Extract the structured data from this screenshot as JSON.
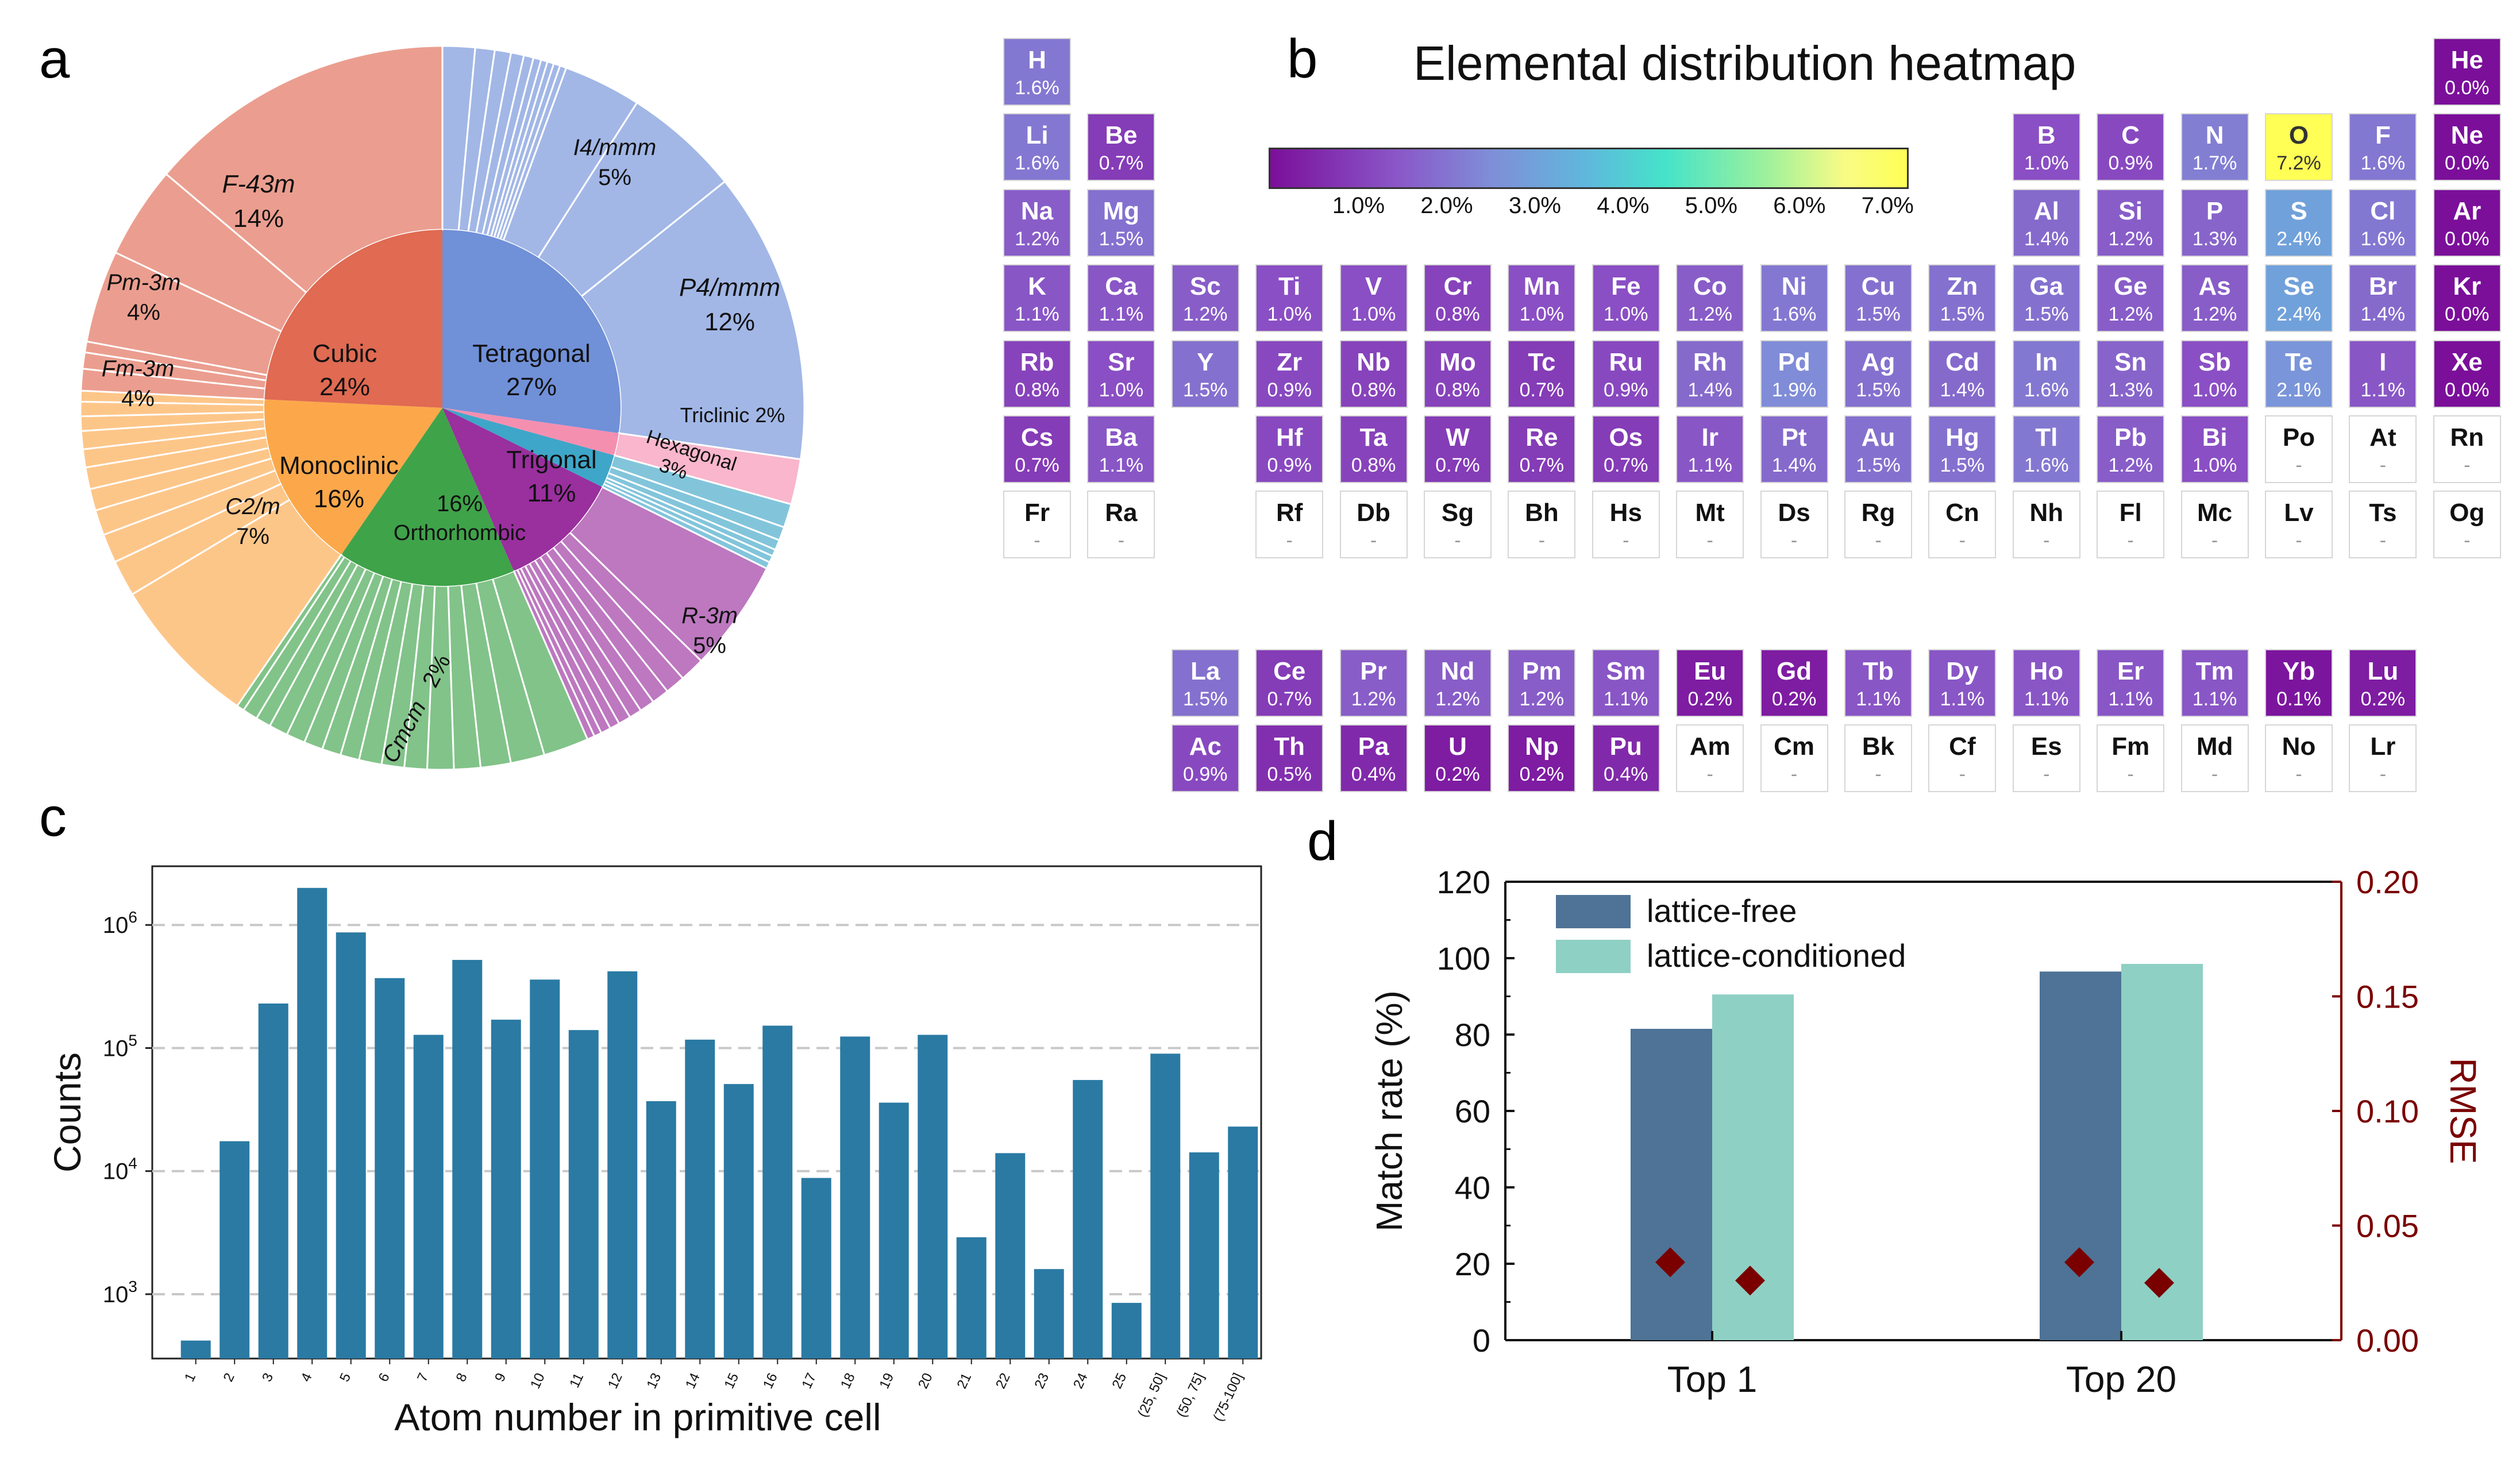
{
  "panel_labels": {
    "a": "a",
    "b": "b",
    "c": "c",
    "d": "d"
  },
  "chart_data": [
    {
      "type": "pie",
      "panel": "a",
      "title": "",
      "inner": [
        {
          "name": "Tetragonal",
          "value": 27,
          "label": "27%",
          "color": "#7090d8"
        },
        {
          "name": "Triclinic",
          "value": 2,
          "color": "#f58fb0"
        },
        {
          "name": "Hexagonal",
          "value": 3,
          "color": "#3ea6c8"
        },
        {
          "name": "Trigonal",
          "value": 11,
          "label": "11%",
          "color": "#9a2f9e"
        },
        {
          "name": "Orthorhombic",
          "value": 16,
          "label": "16%",
          "color": "#3fa34a"
        },
        {
          "name": "Monoclinic",
          "value": 16,
          "label": "16%",
          "color": "#fca84a"
        },
        {
          "name": "Cubic",
          "value": 24,
          "label": "24%",
          "color": "#e06a52"
        }
      ],
      "outer_labels": [
        {
          "group": "Tetragonal",
          "name": "I4/mmm",
          "value": "5%"
        },
        {
          "group": "Tetragonal",
          "name": "P4/mmm",
          "value": "12%"
        },
        {
          "group": "Triclinic",
          "name": "Triclinic 2%"
        },
        {
          "group": "Hexagonal",
          "name": "Hexagonal",
          "value": "3%"
        },
        {
          "group": "Trigonal",
          "name": "R-3m",
          "value": "5%"
        },
        {
          "group": "Orthorhombic",
          "name": "Cmcm",
          "value": "2%"
        },
        {
          "group": "Monoclinic",
          "name": "C2/m",
          "value": "7%"
        },
        {
          "group": "Cubic",
          "name": "Fm-3m",
          "value": "4%"
        },
        {
          "group": "Cubic",
          "name": "Pm-3m",
          "value": "4%"
        },
        {
          "group": "Cubic",
          "name": "F-43m",
          "value": "14%"
        }
      ]
    },
    {
      "type": "heatmap",
      "panel": "b",
      "title": "Elemental distribution heatmap",
      "colorbar_ticks": [
        "1.0%",
        "2.0%",
        "3.0%",
        "4.0%",
        "5.0%",
        "6.0%",
        "7.0%"
      ],
      "colorbar_range": [
        0,
        7.2
      ],
      "elements": [
        {
          "s": "H",
          "v": "1.6%",
          "r": 1,
          "c": 1
        },
        {
          "s": "He",
          "v": "0.0%",
          "r": 1,
          "c": 18
        },
        {
          "s": "Li",
          "v": "1.6%",
          "r": 2,
          "c": 1
        },
        {
          "s": "Be",
          "v": "0.7%",
          "r": 2,
          "c": 2
        },
        {
          "s": "B",
          "v": "1.0%",
          "r": 2,
          "c": 13
        },
        {
          "s": "C",
          "v": "0.9%",
          "r": 2,
          "c": 14
        },
        {
          "s": "N",
          "v": "1.7%",
          "r": 2,
          "c": 15
        },
        {
          "s": "O",
          "v": "7.2%",
          "r": 2,
          "c": 16
        },
        {
          "s": "F",
          "v": "1.6%",
          "r": 2,
          "c": 17
        },
        {
          "s": "Ne",
          "v": "0.0%",
          "r": 2,
          "c": 18
        },
        {
          "s": "Na",
          "v": "1.2%",
          "r": 3,
          "c": 1
        },
        {
          "s": "Mg",
          "v": "1.5%",
          "r": 3,
          "c": 2
        },
        {
          "s": "Al",
          "v": "1.4%",
          "r": 3,
          "c": 13
        },
        {
          "s": "Si",
          "v": "1.2%",
          "r": 3,
          "c": 14
        },
        {
          "s": "P",
          "v": "1.3%",
          "r": 3,
          "c": 15
        },
        {
          "s": "S",
          "v": "2.4%",
          "r": 3,
          "c": 16
        },
        {
          "s": "Cl",
          "v": "1.6%",
          "r": 3,
          "c": 17
        },
        {
          "s": "Ar",
          "v": "0.0%",
          "r": 3,
          "c": 18
        },
        {
          "s": "K",
          "v": "1.1%",
          "r": 4,
          "c": 1
        },
        {
          "s": "Ca",
          "v": "1.1%",
          "r": 4,
          "c": 2
        },
        {
          "s": "Sc",
          "v": "1.2%",
          "r": 4,
          "c": 3
        },
        {
          "s": "Ti",
          "v": "1.0%",
          "r": 4,
          "c": 4
        },
        {
          "s": "V",
          "v": "1.0%",
          "r": 4,
          "c": 5
        },
        {
          "s": "Cr",
          "v": "0.8%",
          "r": 4,
          "c": 6
        },
        {
          "s": "Mn",
          "v": "1.0%",
          "r": 4,
          "c": 7
        },
        {
          "s": "Fe",
          "v": "1.0%",
          "r": 4,
          "c": 8
        },
        {
          "s": "Co",
          "v": "1.2%",
          "r": 4,
          "c": 9
        },
        {
          "s": "Ni",
          "v": "1.6%",
          "r": 4,
          "c": 10
        },
        {
          "s": "Cu",
          "v": "1.5%",
          "r": 4,
          "c": 11
        },
        {
          "s": "Zn",
          "v": "1.5%",
          "r": 4,
          "c": 12
        },
        {
          "s": "Ga",
          "v": "1.5%",
          "r": 4,
          "c": 13
        },
        {
          "s": "Ge",
          "v": "1.2%",
          "r": 4,
          "c": 14
        },
        {
          "s": "As",
          "v": "1.2%",
          "r": 4,
          "c": 15
        },
        {
          "s": "Se",
          "v": "2.4%",
          "r": 4,
          "c": 16
        },
        {
          "s": "Br",
          "v": "1.4%",
          "r": 4,
          "c": 17
        },
        {
          "s": "Kr",
          "v": "0.0%",
          "r": 4,
          "c": 18
        },
        {
          "s": "Rb",
          "v": "0.8%",
          "r": 5,
          "c": 1
        },
        {
          "s": "Sr",
          "v": "1.0%",
          "r": 5,
          "c": 2
        },
        {
          "s": "Y",
          "v": "1.5%",
          "r": 5,
          "c": 3
        },
        {
          "s": "Zr",
          "v": "0.9%",
          "r": 5,
          "c": 4
        },
        {
          "s": "Nb",
          "v": "0.8%",
          "r": 5,
          "c": 5
        },
        {
          "s": "Mo",
          "v": "0.8%",
          "r": 5,
          "c": 6
        },
        {
          "s": "Tc",
          "v": "0.7%",
          "r": 5,
          "c": 7
        },
        {
          "s": "Ru",
          "v": "0.9%",
          "r": 5,
          "c": 8
        },
        {
          "s": "Rh",
          "v": "1.4%",
          "r": 5,
          "c": 9
        },
        {
          "s": "Pd",
          "v": "1.9%",
          "r": 5,
          "c": 10
        },
        {
          "s": "Ag",
          "v": "1.5%",
          "r": 5,
          "c": 11
        },
        {
          "s": "Cd",
          "v": "1.4%",
          "r": 5,
          "c": 12
        },
        {
          "s": "In",
          "v": "1.6%",
          "r": 5,
          "c": 13
        },
        {
          "s": "Sn",
          "v": "1.3%",
          "r": 5,
          "c": 14
        },
        {
          "s": "Sb",
          "v": "1.0%",
          "r": 5,
          "c": 15
        },
        {
          "s": "Te",
          "v": "2.1%",
          "r": 5,
          "c": 16
        },
        {
          "s": "I",
          "v": "1.1%",
          "r": 5,
          "c": 17
        },
        {
          "s": "Xe",
          "v": "0.0%",
          "r": 5,
          "c": 18
        },
        {
          "s": "Cs",
          "v": "0.7%",
          "r": 6,
          "c": 1
        },
        {
          "s": "Ba",
          "v": "1.1%",
          "r": 6,
          "c": 2
        },
        {
          "s": "Hf",
          "v": "0.9%",
          "r": 6,
          "c": 4
        },
        {
          "s": "Ta",
          "v": "0.8%",
          "r": 6,
          "c": 5
        },
        {
          "s": "W",
          "v": "0.7%",
          "r": 6,
          "c": 6
        },
        {
          "s": "Re",
          "v": "0.7%",
          "r": 6,
          "c": 7
        },
        {
          "s": "Os",
          "v": "0.7%",
          "r": 6,
          "c": 8
        },
        {
          "s": "Ir",
          "v": "1.1%",
          "r": 6,
          "c": 9
        },
        {
          "s": "Pt",
          "v": "1.4%",
          "r": 6,
          "c": 10
        },
        {
          "s": "Au",
          "v": "1.5%",
          "r": 6,
          "c": 11
        },
        {
          "s": "Hg",
          "v": "1.5%",
          "r": 6,
          "c": 12
        },
        {
          "s": "Tl",
          "v": "1.6%",
          "r": 6,
          "c": 13
        },
        {
          "s": "Pb",
          "v": "1.2%",
          "r": 6,
          "c": 14
        },
        {
          "s": "Bi",
          "v": "1.0%",
          "r": 6,
          "c": 15
        },
        {
          "s": "Po",
          "v": "-",
          "r": 6,
          "c": 16
        },
        {
          "s": "At",
          "v": "-",
          "r": 6,
          "c": 17
        },
        {
          "s": "Rn",
          "v": "-",
          "r": 6,
          "c": 18
        },
        {
          "s": "Fr",
          "v": "-",
          "r": 7,
          "c": 1
        },
        {
          "s": "Ra",
          "v": "-",
          "r": 7,
          "c": 2
        },
        {
          "s": "Rf",
          "v": "-",
          "r": 7,
          "c": 4
        },
        {
          "s": "Db",
          "v": "-",
          "r": 7,
          "c": 5
        },
        {
          "s": "Sg",
          "v": "-",
          "r": 7,
          "c": 6
        },
        {
          "s": "Bh",
          "v": "-",
          "r": 7,
          "c": 7
        },
        {
          "s": "Hs",
          "v": "-",
          "r": 7,
          "c": 8
        },
        {
          "s": "Mt",
          "v": "-",
          "r": 7,
          "c": 9
        },
        {
          "s": "Ds",
          "v": "-",
          "r": 7,
          "c": 10
        },
        {
          "s": "Rg",
          "v": "-",
          "r": 7,
          "c": 11
        },
        {
          "s": "Cn",
          "v": "-",
          "r": 7,
          "c": 12
        },
        {
          "s": "Nh",
          "v": "-",
          "r": 7,
          "c": 13
        },
        {
          "s": "Fl",
          "v": "-",
          "r": 7,
          "c": 14
        },
        {
          "s": "Mc",
          "v": "-",
          "r": 7,
          "c": 15
        },
        {
          "s": "Lv",
          "v": "-",
          "r": 7,
          "c": 16
        },
        {
          "s": "Ts",
          "v": "-",
          "r": 7,
          "c": 17
        },
        {
          "s": "Og",
          "v": "-",
          "r": 7,
          "c": 18
        },
        {
          "s": "La",
          "v": "1.5%",
          "r": 8,
          "c": 3
        },
        {
          "s": "Ce",
          "v": "0.7%",
          "r": 8,
          "c": 4
        },
        {
          "s": "Pr",
          "v": "1.2%",
          "r": 8,
          "c": 5
        },
        {
          "s": "Nd",
          "v": "1.2%",
          "r": 8,
          "c": 6
        },
        {
          "s": "Pm",
          "v": "1.2%",
          "r": 8,
          "c": 7
        },
        {
          "s": "Sm",
          "v": "1.1%",
          "r": 8,
          "c": 8
        },
        {
          "s": "Eu",
          "v": "0.2%",
          "r": 8,
          "c": 9
        },
        {
          "s": "Gd",
          "v": "0.2%",
          "r": 8,
          "c": 10
        },
        {
          "s": "Tb",
          "v": "1.1%",
          "r": 8,
          "c": 11
        },
        {
          "s": "Dy",
          "v": "1.1%",
          "r": 8,
          "c": 12
        },
        {
          "s": "Ho",
          "v": "1.1%",
          "r": 8,
          "c": 13
        },
        {
          "s": "Er",
          "v": "1.1%",
          "r": 8,
          "c": 14
        },
        {
          "s": "Tm",
          "v": "1.1%",
          "r": 8,
          "c": 15
        },
        {
          "s": "Yb",
          "v": "0.1%",
          "r": 8,
          "c": 16
        },
        {
          "s": "Lu",
          "v": "0.2%",
          "r": 8,
          "c": 17
        },
        {
          "s": "Ac",
          "v": "0.9%",
          "r": 9,
          "c": 3
        },
        {
          "s": "Th",
          "v": "0.5%",
          "r": 9,
          "c": 4
        },
        {
          "s": "Pa",
          "v": "0.4%",
          "r": 9,
          "c": 5
        },
        {
          "s": "U",
          "v": "0.2%",
          "r": 9,
          "c": 6
        },
        {
          "s": "Np",
          "v": "0.2%",
          "r": 9,
          "c": 7
        },
        {
          "s": "Pu",
          "v": "0.4%",
          "r": 9,
          "c": 8
        },
        {
          "s": "Am",
          "v": "-",
          "r": 9,
          "c": 9
        },
        {
          "s": "Cm",
          "v": "-",
          "r": 9,
          "c": 10
        },
        {
          "s": "Bk",
          "v": "-",
          "r": 9,
          "c": 11
        },
        {
          "s": "Cf",
          "v": "-",
          "r": 9,
          "c": 12
        },
        {
          "s": "Es",
          "v": "-",
          "r": 9,
          "c": 13
        },
        {
          "s": "Fm",
          "v": "-",
          "r": 9,
          "c": 14
        },
        {
          "s": "Md",
          "v": "-",
          "r": 9,
          "c": 15
        },
        {
          "s": "No",
          "v": "-",
          "r": 9,
          "c": 16
        },
        {
          "s": "Lr",
          "v": "-",
          "r": 9,
          "c": 17
        }
      ]
    },
    {
      "type": "bar",
      "panel": "c",
      "title": "",
      "xlabel": "Atom number in primitive cell",
      "ylabel": "Counts",
      "yscale": "log",
      "ylim": [
        300,
        3000000
      ],
      "ytick_labels": [
        {
          "base": "10",
          "exp": "3",
          "value": 1000
        },
        {
          "base": "10",
          "exp": "4",
          "value": 10000
        },
        {
          "base": "10",
          "exp": "5",
          "value": 100000
        },
        {
          "base": "10",
          "exp": "6",
          "value": 1000000
        }
      ],
      "categories": [
        "1",
        "2",
        "3",
        "4",
        "5",
        "6",
        "7",
        "8",
        "9",
        "10",
        "11",
        "12",
        "13",
        "14",
        "15",
        "16",
        "17",
        "18",
        "19",
        "20",
        "21",
        "22",
        "23",
        "24",
        "25",
        "(25, 50]",
        "(50, 75]",
        "(75-100]"
      ],
      "values": [
        420,
        17500,
        230000,
        2000000,
        870000,
        370000,
        128000,
        520000,
        170000,
        360000,
        140000,
        420000,
        37000,
        117000,
        51000,
        152000,
        8800,
        124000,
        36000,
        128000,
        2900,
        14000,
        1600,
        55000,
        850,
        90000,
        14200,
        23000
      ],
      "color": "#2a7aa3",
      "grid": "y dashed"
    },
    {
      "type": "bar",
      "panel": "d",
      "categories": [
        "Top 1",
        "Top 20"
      ],
      "series": [
        {
          "name": "lattice-free",
          "values": [
            81.5,
            96.5
          ],
          "color": "#4e7396"
        },
        {
          "name": "lattice-conditioned",
          "values": [
            90.5,
            98.5
          ],
          "color": "#8fd0c4"
        }
      ],
      "ylabel": "Match rate (%)",
      "ylim": [
        0,
        120
      ],
      "yticks": [
        "0",
        "20",
        "40",
        "60",
        "80",
        "100",
        "120"
      ],
      "y2label": "RMSE",
      "y2lim": [
        0,
        0.2
      ],
      "y2ticks": [
        "0.00",
        "0.05",
        "0.10",
        "0.15",
        "0.20"
      ],
      "rmse_points": [
        {
          "category": "Top 1",
          "series": "lattice-free",
          "value": 0.034
        },
        {
          "category": "Top 1",
          "series": "lattice-conditioned",
          "value": 0.026
        },
        {
          "category": "Top 20",
          "series": "lattice-free",
          "value": 0.034
        },
        {
          "category": "Top 20",
          "series": "lattice-conditioned",
          "value": 0.025
        }
      ],
      "rmse_color": "#7a0000",
      "legend": "top-left"
    }
  ]
}
